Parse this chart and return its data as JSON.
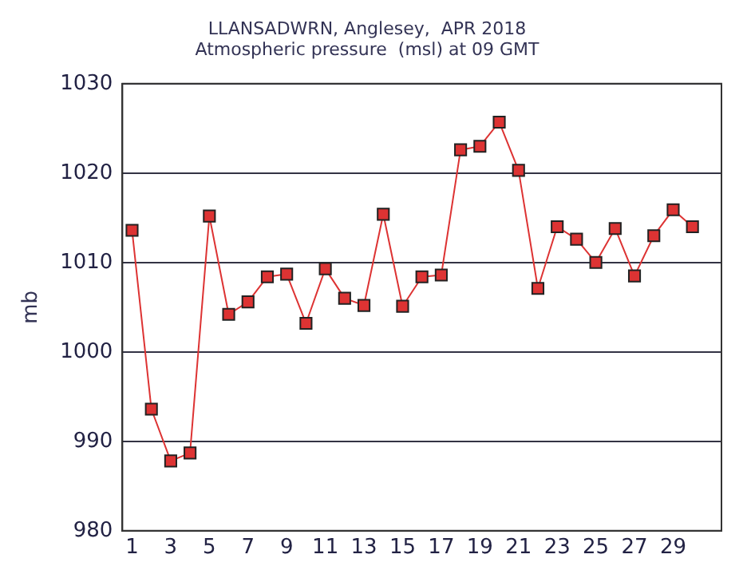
{
  "chart_data": {
    "type": "line",
    "title": "LLANSADWRN, Anglesey,  APR 2018",
    "subtitle": "Atmospheric pressure  (msl) at 09 GMT",
    "ylabel": "mb",
    "x": [
      1,
      2,
      3,
      4,
      5,
      6,
      7,
      8,
      9,
      10,
      11,
      12,
      13,
      14,
      15,
      16,
      17,
      18,
      19,
      20,
      21,
      22,
      23,
      24,
      25,
      26,
      27,
      28,
      29,
      30
    ],
    "series": [
      {
        "color": "#dd3333",
        "values": [
          1013.6,
          993.6,
          987.8,
          988.7,
          1015.2,
          1004.2,
          1005.6,
          1008.4,
          1008.7,
          1003.2,
          1009.3,
          1006.0,
          1005.2,
          1015.4,
          1005.1,
          1008.4,
          1008.6,
          1022.6,
          1023.0,
          1025.7,
          1020.3,
          1007.1,
          1014.0,
          1012.6,
          1010.0,
          1013.8,
          1008.5,
          1013.0,
          1015.9,
          1014.0
        ]
      }
    ],
    "xlim": [
      0.5,
      31.5
    ],
    "xticks": [
      1,
      3,
      5,
      7,
      9,
      11,
      13,
      15,
      17,
      19,
      21,
      23,
      25,
      27,
      29
    ],
    "ylim": [
      980,
      1030
    ],
    "yticks": [
      980,
      990,
      1000,
      1010,
      1020,
      1030
    ],
    "grid": "y",
    "legend": false,
    "marker": "square",
    "line_style": "solid"
  }
}
